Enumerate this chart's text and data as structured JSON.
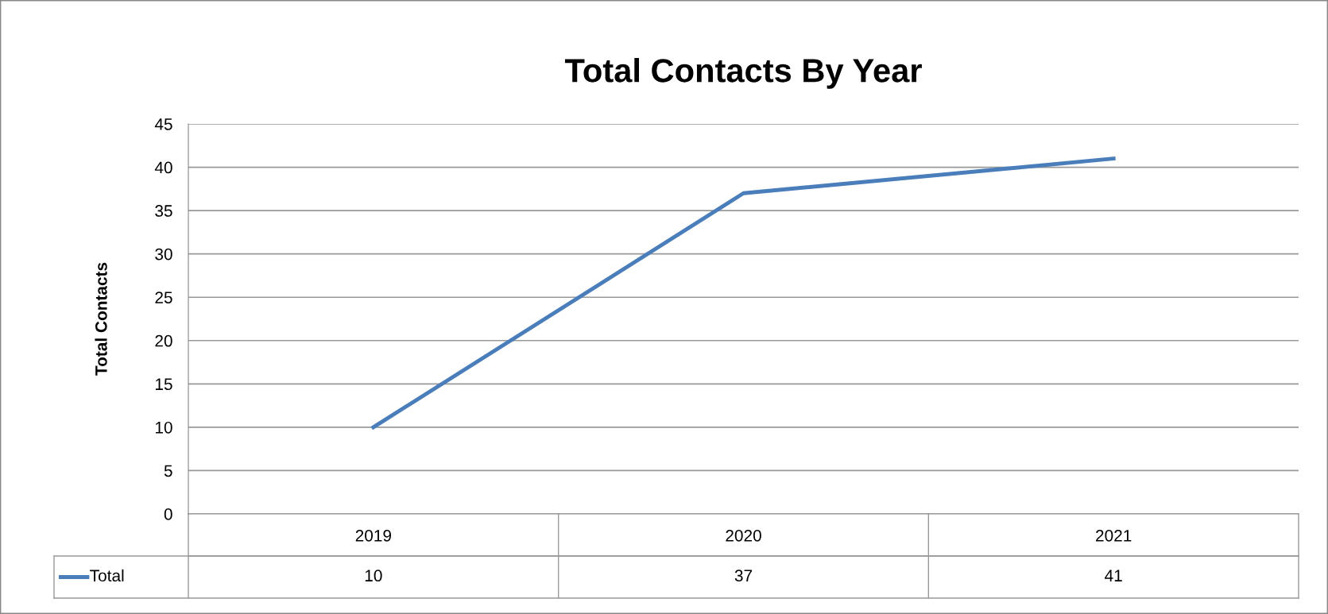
{
  "chart_data": {
    "type": "line",
    "title": "Total Contacts By Year",
    "ylabel": "Total Contacts",
    "categories": [
      "2019",
      "2020",
      "2021"
    ],
    "series": [
      {
        "name": "Total",
        "color": "#4a7ebb",
        "values": [
          10,
          37,
          41
        ]
      }
    ],
    "ylim": [
      0,
      45
    ],
    "yticks": [
      0,
      5,
      10,
      15,
      20,
      25,
      30,
      35,
      40,
      45
    ],
    "grid": "y",
    "legend": "bottom",
    "data_labels": true,
    "marker": "none",
    "line_style": "solid"
  }
}
